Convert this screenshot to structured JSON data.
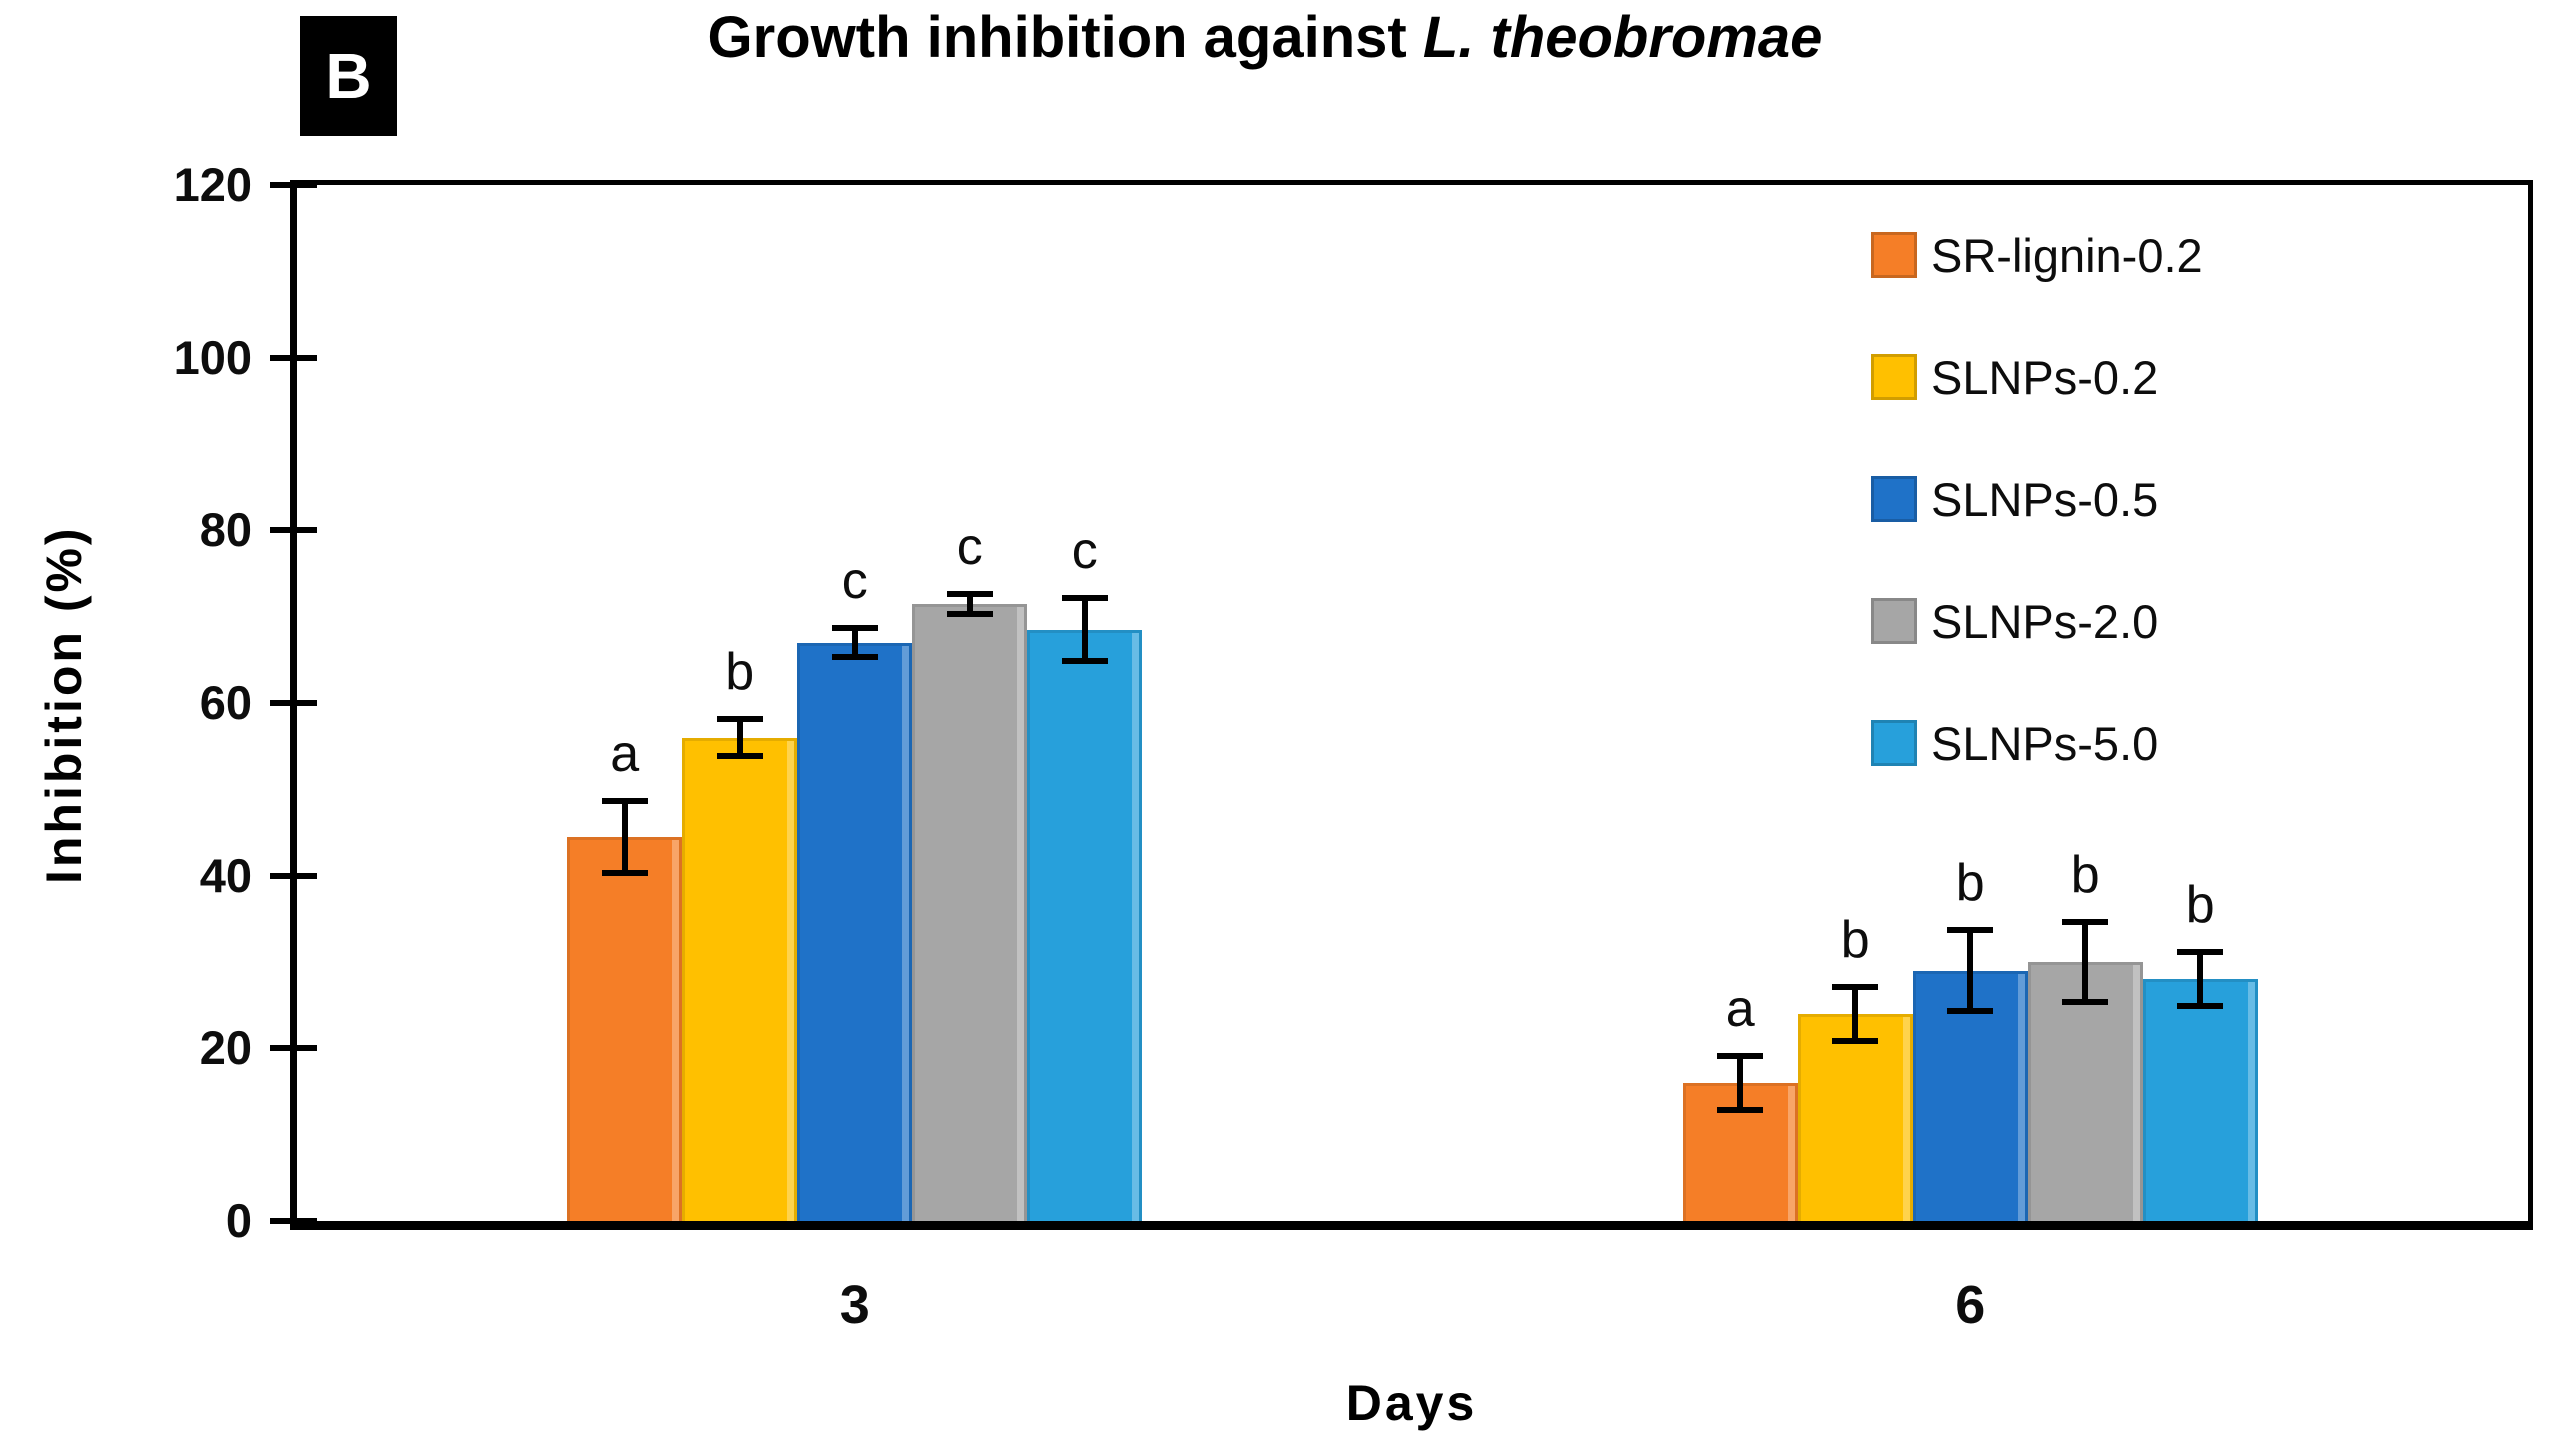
{
  "panel_label": "B",
  "chart_data": {
    "type": "bar",
    "title": "Growth inhibition against L. theobromae",
    "title_prefix": "Growth inhibition against ",
    "title_species": "L. theobromae",
    "xlabel": "Days",
    "ylabel": "Inhibition (%)",
    "ylim": [
      0,
      120
    ],
    "y_ticks": [
      0,
      20,
      40,
      60,
      80,
      100,
      120
    ],
    "categories": [
      "3",
      "6"
    ],
    "grid": false,
    "legend_position": "inside-top-right",
    "axis_color": "#000000",
    "series": [
      {
        "name": "SR-lignin-0.2",
        "color": "#F57E27",
        "values": [
          44.5,
          16
        ],
        "errors": [
          4.5,
          3.5
        ],
        "letters": [
          "a",
          "a"
        ]
      },
      {
        "name": "SLNPs-0.2",
        "color": "#FFC000",
        "values": [
          56,
          24
        ],
        "errors": [
          2.5,
          3.5
        ],
        "letters": [
          "b",
          "b"
        ]
      },
      {
        "name": "SLNPs-0.5",
        "color": "#1F72C8",
        "values": [
          67,
          29
        ],
        "errors": [
          2,
          5
        ],
        "letters": [
          "c",
          "b"
        ]
      },
      {
        "name": "SLNPs-2.0",
        "color": "#A6A6A6",
        "values": [
          71.5,
          30
        ],
        "errors": [
          1.5,
          5
        ],
        "letters": [
          "c",
          "b"
        ]
      },
      {
        "name": "SLNPs-5.0",
        "color": "#27A0DB",
        "values": [
          68.5,
          28
        ],
        "errors": [
          4,
          3.5
        ],
        "letters": [
          "c",
          "b"
        ]
      }
    ]
  }
}
